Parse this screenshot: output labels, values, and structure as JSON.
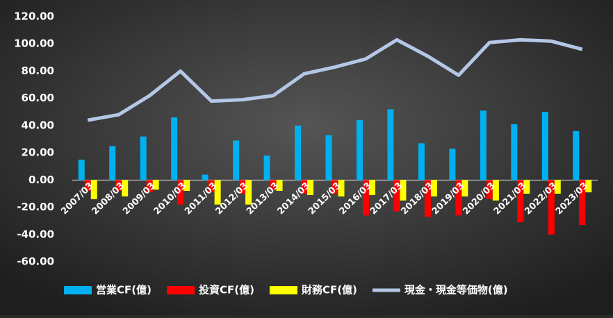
{
  "chart_data": {
    "type": "bar",
    "categories": [
      "2007/03",
      "2008/03",
      "2009/03",
      "2010/03",
      "2011/03",
      "2012/03",
      "2013/03",
      "2014/03",
      "2015/03",
      "2016/03",
      "2017/03",
      "2018/03",
      "2019/03",
      "2020/03",
      "2021/03",
      "2022/03",
      "2023/03"
    ],
    "series": [
      {
        "name": "営業CF(億)",
        "color": "#00b0f0",
        "values": [
          15,
          25,
          32,
          46,
          4,
          29,
          18,
          40,
          33,
          44,
          52,
          27,
          23,
          51,
          41,
          50,
          36
        ]
      },
      {
        "name": "投資CF(億)",
        "color": "#ff0000",
        "values": [
          -8,
          -8,
          -9,
          -18,
          -9,
          -10,
          -7,
          -10,
          -10,
          -26,
          -23,
          -27,
          -26,
          -14,
          -31,
          -40,
          -33
        ]
      },
      {
        "name": "財務CF(億)",
        "color": "#ffff00",
        "values": [
          -14,
          -12,
          -7,
          -8,
          -18,
          -18,
          -8,
          -11,
          -12,
          -11,
          -15,
          -12,
          -12,
          -15,
          -10,
          -10,
          -9
        ]
      },
      {
        "name": "現金・現金等価物(億)",
        "color": "#b4c7e7",
        "type": "line",
        "values": [
          44,
          48,
          62,
          80,
          58,
          59,
          62,
          78,
          83,
          89,
          103,
          91,
          77,
          101,
          103,
          102,
          96
        ]
      }
    ],
    "ylim": [
      -60,
      120
    ],
    "yticks": [
      {
        "value": -60,
        "label": "-60.00"
      },
      {
        "value": -40,
        "label": "-40.00"
      },
      {
        "value": -20,
        "label": "-20.00"
      },
      {
        "value": 0,
        "label": "0.00"
      },
      {
        "value": 20,
        "label": "20.00"
      },
      {
        "value": 40,
        "label": "40.00"
      },
      {
        "value": 60,
        "label": "60.00"
      },
      {
        "value": 80,
        "label": "80.00"
      },
      {
        "value": 100,
        "label": "100.00"
      },
      {
        "value": 120,
        "label": "120.00"
      }
    ],
    "legend": "bottom"
  }
}
